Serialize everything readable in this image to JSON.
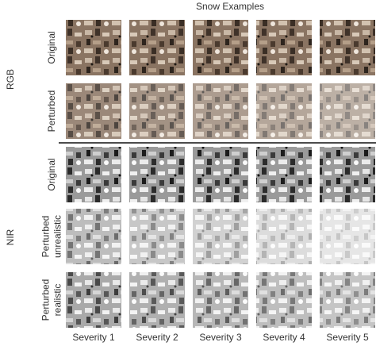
{
  "title": "Snow Examples",
  "groups": [
    {
      "label": "RGB",
      "rows": [
        [
          "Original"
        ],
        [
          "Perturbed"
        ]
      ]
    },
    {
      "label": "NIR",
      "rows": [
        [
          "Original"
        ],
        [
          "Perturbed",
          "unrealistic"
        ],
        [
          "Perturbed",
          "realistic"
        ]
      ]
    }
  ],
  "columns": [
    "Severity 1",
    "Severity 2",
    "Severity 3",
    "Severity 4",
    "Severity 5"
  ]
}
